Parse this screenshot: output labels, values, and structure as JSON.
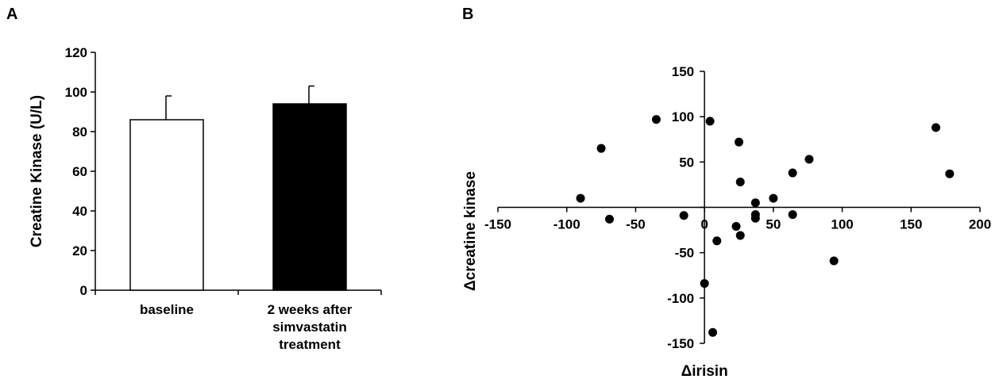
{
  "panels": {
    "a_label": "A",
    "b_label": "B"
  },
  "chart_data": [
    {
      "type": "bar",
      "panel": "A",
      "categories": [
        [
          "baseline"
        ],
        [
          "2 weeks after",
          "simvastatin",
          "treatment"
        ]
      ],
      "values": [
        86,
        94
      ],
      "error_up": [
        12,
        9
      ],
      "bar_colors": [
        "#ffffff",
        "#000000"
      ],
      "ylabel": "Creatine Kinase (U/L)",
      "xlabel": "",
      "ylim": [
        0,
        120
      ],
      "yticks": [
        0,
        20,
        40,
        60,
        80,
        100,
        120
      ],
      "grid": false
    },
    {
      "type": "scatter",
      "panel": "B",
      "xlabel": "Δirisin",
      "ylabel": "Δcreatine kinase",
      "xlim": [
        -150,
        200
      ],
      "ylim": [
        -150,
        150
      ],
      "xticks": [
        -150,
        -100,
        -50,
        0,
        50,
        100,
        150,
        200
      ],
      "yticks": [
        -150,
        -100,
        -50,
        0,
        50,
        100,
        150
      ],
      "grid": false,
      "points": [
        {
          "x": -90,
          "y": 10
        },
        {
          "x": -75,
          "y": 65
        },
        {
          "x": -69,
          "y": -13
        },
        {
          "x": -35,
          "y": 97
        },
        {
          "x": -15,
          "y": -9
        },
        {
          "x": 4,
          "y": 95
        },
        {
          "x": 0,
          "y": -84
        },
        {
          "x": 6,
          "y": -138
        },
        {
          "x": 9,
          "y": -37
        },
        {
          "x": 23,
          "y": -21
        },
        {
          "x": 25,
          "y": 72
        },
        {
          "x": 26,
          "y": 28
        },
        {
          "x": 26,
          "y": -31
        },
        {
          "x": 37,
          "y": 5
        },
        {
          "x": 37,
          "y": -8
        },
        {
          "x": 37,
          "y": -12
        },
        {
          "x": 50,
          "y": 10
        },
        {
          "x": 64,
          "y": 38
        },
        {
          "x": 64,
          "y": -8
        },
        {
          "x": 76,
          "y": 53
        },
        {
          "x": 94,
          "y": -59
        },
        {
          "x": 168,
          "y": 88
        },
        {
          "x": 178,
          "y": 37
        }
      ]
    }
  ]
}
